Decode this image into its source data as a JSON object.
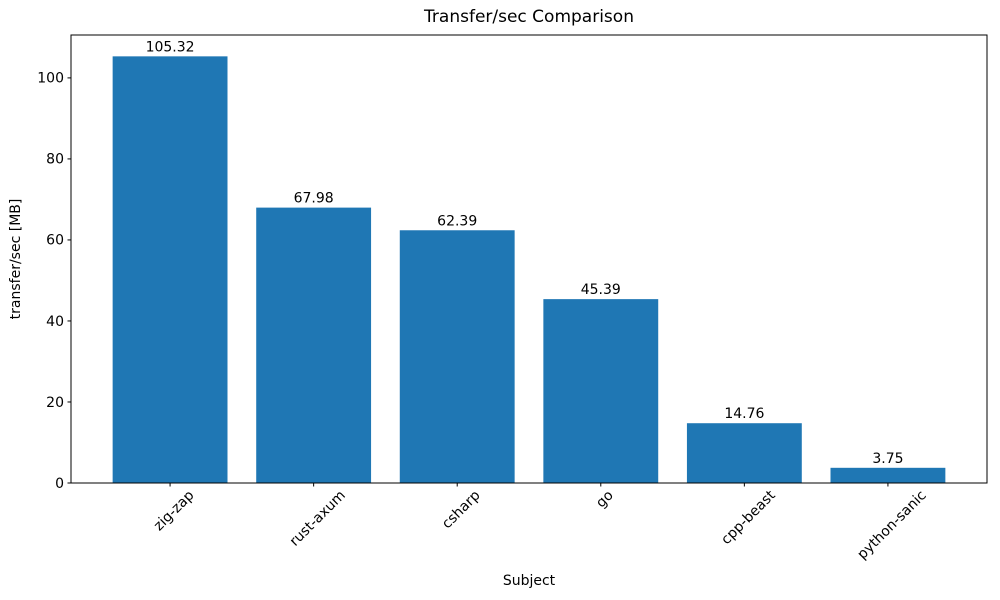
{
  "chart_data": {
    "type": "bar",
    "title": "Transfer/sec Comparison",
    "xlabel": "Subject",
    "ylabel": "transfer/sec [MB]",
    "categories": [
      "zig-zap",
      "rust-axum",
      "csharp",
      "go",
      "cpp-beast",
      "python-sanic"
    ],
    "values": [
      105.32,
      67.98,
      62.39,
      45.39,
      14.76,
      3.75
    ],
    "bar_value_labels": [
      "105.32",
      "67.98",
      "62.39",
      "45.39",
      "14.76",
      "3.75"
    ],
    "yticks": [
      0,
      20,
      40,
      60,
      80,
      100
    ],
    "ytick_labels": [
      "0",
      "20",
      "40",
      "60",
      "80",
      "100"
    ],
    "ylim": [
      0,
      110.59
    ],
    "x_tick_rotation_deg": 45,
    "grid": false,
    "legend_position": "none",
    "bar_color": "#1f77b4",
    "axis_color": "#000000",
    "text_color": "#000000",
    "background_color": "#ffffff"
  }
}
